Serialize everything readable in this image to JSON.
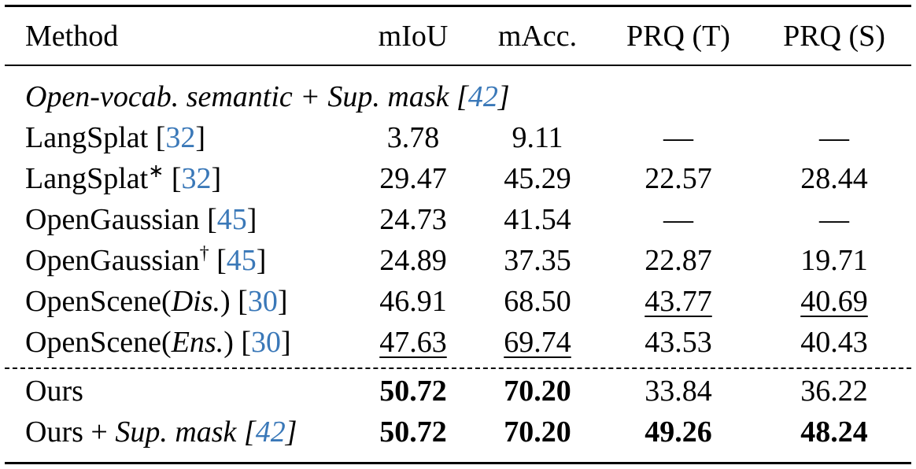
{
  "table": {
    "header": [
      "Method",
      "mIoU",
      "mAcc.",
      "PRQ (T)",
      "PRQ (S)"
    ],
    "groups": [
      {
        "label": [
          {
            "text": "Open-vocab. semantic + Sup. mask [",
            "italic": true
          },
          {
            "text": "42",
            "italic": true,
            "cite": true
          },
          {
            "text": "]",
            "italic": true
          }
        ],
        "rows": [
          {
            "method": [
              {
                "text": "LangSplat ["
              },
              {
                "text": "32",
                "cite": true
              },
              {
                "text": "]"
              }
            ],
            "cells": [
              {
                "text": "3.78"
              },
              {
                "text": "9.11"
              },
              {
                "text": "—"
              },
              {
                "text": "—"
              }
            ]
          },
          {
            "method": [
              {
                "text": "LangSplat"
              },
              {
                "text": "∗",
                "sup": true
              },
              {
                "text": " ["
              },
              {
                "text": "32",
                "cite": true
              },
              {
                "text": "]"
              }
            ],
            "cells": [
              {
                "text": "29.47"
              },
              {
                "text": "45.29"
              },
              {
                "text": "22.57"
              },
              {
                "text": "28.44"
              }
            ]
          },
          {
            "method": [
              {
                "text": "OpenGaussian ["
              },
              {
                "text": "45",
                "cite": true
              },
              {
                "text": "]"
              }
            ],
            "cells": [
              {
                "text": "24.73"
              },
              {
                "text": "41.54"
              },
              {
                "text": "—"
              },
              {
                "text": "—"
              }
            ]
          },
          {
            "method": [
              {
                "text": "OpenGaussian"
              },
              {
                "text": "†",
                "sup": true
              },
              {
                "text": " ["
              },
              {
                "text": "45",
                "cite": true
              },
              {
                "text": "]"
              }
            ],
            "cells": [
              {
                "text": "24.89"
              },
              {
                "text": "37.35"
              },
              {
                "text": "22.87"
              },
              {
                "text": "19.71"
              }
            ]
          },
          {
            "method": [
              {
                "text": "OpenScene("
              },
              {
                "text": "Dis.",
                "italic": true
              },
              {
                "text": ") ["
              },
              {
                "text": "30",
                "cite": true
              },
              {
                "text": "]"
              }
            ],
            "cells": [
              {
                "text": "46.91"
              },
              {
                "text": "68.50"
              },
              {
                "text": "43.77",
                "underline": true
              },
              {
                "text": "40.69",
                "underline": true
              }
            ]
          },
          {
            "method": [
              {
                "text": "OpenScene("
              },
              {
                "text": "Ens.",
                "italic": true
              },
              {
                "text": ") ["
              },
              {
                "text": "30",
                "cite": true
              },
              {
                "text": "]"
              }
            ],
            "cells": [
              {
                "text": "47.63",
                "underline": true
              },
              {
                "text": "69.74",
                "underline": true
              },
              {
                "text": "43.53"
              },
              {
                "text": "40.43"
              }
            ]
          }
        ]
      },
      {
        "rows": [
          {
            "method": [
              {
                "text": "Ours"
              }
            ],
            "cells": [
              {
                "text": "50.72",
                "bold": true
              },
              {
                "text": "70.20",
                "bold": true
              },
              {
                "text": "33.84"
              },
              {
                "text": "36.22"
              }
            ]
          },
          {
            "method": [
              {
                "text": "Ours + "
              },
              {
                "text": "Sup. mask [",
                "italic": true
              },
              {
                "text": "42",
                "italic": true,
                "cite": true
              },
              {
                "text": "]",
                "italic": true
              }
            ],
            "cells": [
              {
                "text": "50.72",
                "bold": true
              },
              {
                "text": "70.20",
                "bold": true
              },
              {
                "text": "49.26",
                "bold": true
              },
              {
                "text": "48.24",
                "bold": true
              }
            ]
          }
        ]
      }
    ]
  }
}
